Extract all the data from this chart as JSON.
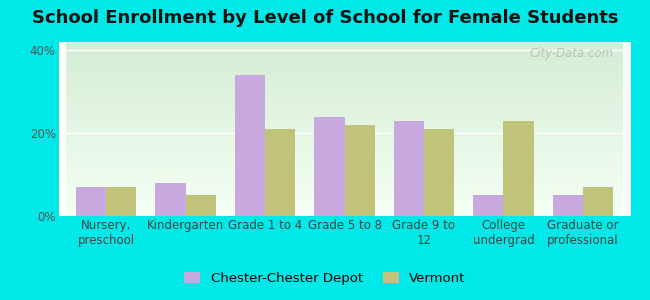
{
  "title": "School Enrollment by Level of School for Female Students",
  "categories": [
    "Nursery,\npreschool",
    "Kindergarten",
    "Grade 1 to 4",
    "Grade 5 to 8",
    "Grade 9 to\n12",
    "College\nundergrad",
    "Graduate or\nprofessional"
  ],
  "chester_values": [
    7,
    8,
    34,
    24,
    23,
    5,
    5
  ],
  "vermont_values": [
    7,
    5,
    21,
    22,
    21,
    23,
    7
  ],
  "chester_color": "#c9a8e0",
  "vermont_color": "#c0c47a",
  "background_color": "#00e8e8",
  "gradient_top": "#d4edd4",
  "gradient_bottom": "#f5fff5",
  "ylabel_ticks": [
    "0%",
    "20%",
    "40%"
  ],
  "ytick_values": [
    0,
    20,
    40
  ],
  "ylim": [
    0,
    42
  ],
  "legend_labels": [
    "Chester-Chester Depot",
    "Vermont"
  ],
  "title_fontsize": 13,
  "tick_fontsize": 8.5,
  "legend_fontsize": 9.5,
  "watermark_text": "City-Data.com"
}
